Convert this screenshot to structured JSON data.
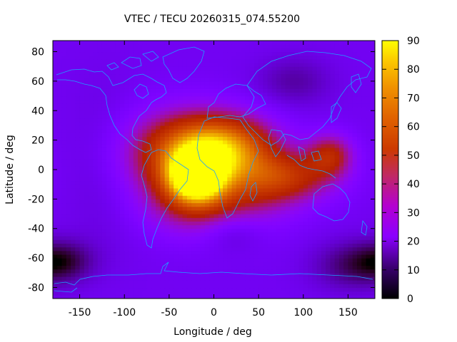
{
  "chart_data": {
    "type": "heatmap",
    "title": "VTEC / TECU 20260315_074.55200",
    "xlabel": "Longitude / deg",
    "ylabel": "Latitude / deg",
    "xlim": [
      -180,
      180
    ],
    "ylim": [
      -87.5,
      87.5
    ],
    "x_ticks": [
      -150,
      -100,
      -50,
      0,
      50,
      100,
      150
    ],
    "y_ticks": [
      -80,
      -60,
      -40,
      -20,
      0,
      20,
      40,
      60,
      80
    ],
    "colorbar": {
      "range": [
        0,
        90
      ],
      "ticks": [
        0,
        10,
        20,
        30,
        40,
        50,
        60,
        70,
        80,
        90
      ],
      "colormap": "gnuplot-pm3d"
    },
    "field": {
      "background": 18,
      "peaks": [
        {
          "lon": -20,
          "lat": -5,
          "amp": 72,
          "slon": 22,
          "slat": 12
        },
        {
          "lon": 10,
          "lat": 15,
          "amp": 50,
          "slon": 40,
          "slat": 15
        },
        {
          "lon": -40,
          "lat": 10,
          "amp": 32,
          "slon": 45,
          "slat": 20
        },
        {
          "lon": 75,
          "lat": -5,
          "amp": 32,
          "slon": 40,
          "slat": 12
        },
        {
          "lon": 130,
          "lat": 10,
          "amp": 26,
          "slon": 18,
          "slat": 10
        },
        {
          "lon": 0,
          "lat": -25,
          "amp": 22,
          "slon": 50,
          "slat": 15
        },
        {
          "lon": 20,
          "lat": -40,
          "amp": -10,
          "slon": 25,
          "slat": 10
        },
        {
          "lon": -170,
          "lat": -62,
          "amp": -14,
          "slon": 25,
          "slat": 10
        },
        {
          "lon": 150,
          "lat": -65,
          "amp": -10,
          "slon": 30,
          "slat": 12
        },
        {
          "lon": 90,
          "lat": 60,
          "amp": -8,
          "slon": 30,
          "slat": 12
        },
        {
          "lon": -120,
          "lat": 0,
          "amp": -4,
          "slon": 30,
          "slat": 40
        }
      ]
    }
  },
  "coastline_color": "#1ea0ff"
}
